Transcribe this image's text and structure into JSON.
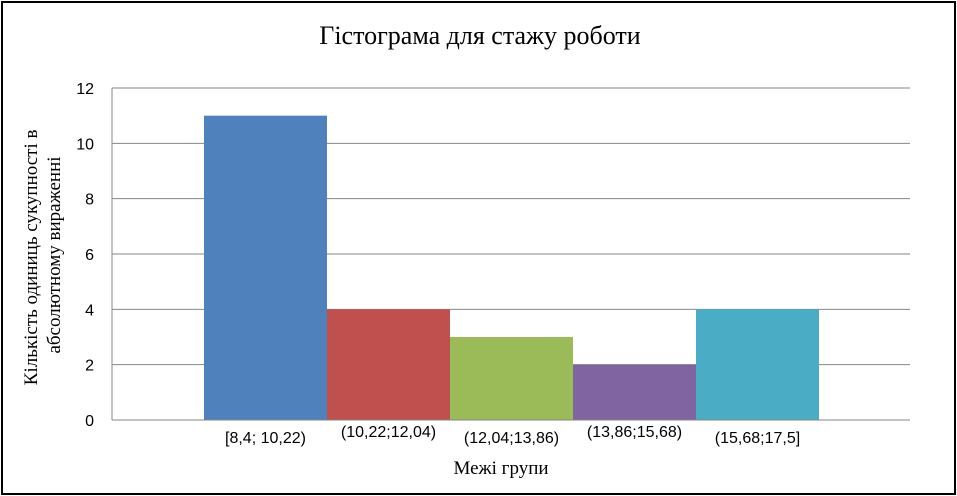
{
  "chart_data": {
    "type": "bar",
    "title": "Гістограма для стажу роботи",
    "xlabel": "Межі групи",
    "ylabel_lines": [
      "Кількість одиниць сукупності в",
      "абсолютному вираженні"
    ],
    "categories": [
      "[8,4; 10,22)",
      "(10,22;12,04)",
      "(12,04;13,86)",
      "(13,86;15,68)",
      "(15,68;17,5]"
    ],
    "values": [
      11,
      4,
      3,
      2,
      4
    ],
    "bar_colors": [
      "#4F81BD",
      "#C0504D",
      "#9BBB59",
      "#8064A2",
      "#4BACC6"
    ],
    "ylim": [
      0,
      12
    ],
    "yticks": [
      0,
      2,
      4,
      6,
      8,
      10,
      12
    ],
    "grid": true,
    "legend": "none"
  }
}
